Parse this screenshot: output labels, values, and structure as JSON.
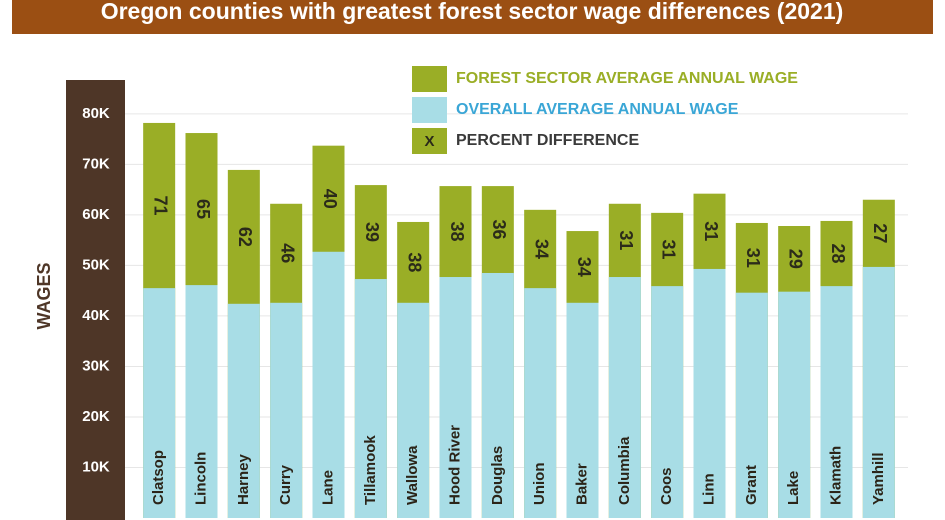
{
  "chart_data": {
    "type": "bar",
    "title": "Oregon counties with greatest forest sector wage differences (2021)",
    "y_label": "WAGES",
    "categories": [
      "Clatsop",
      "Lincoln",
      "Harney",
      "Curry",
      "Lane",
      "Tillamook",
      "Wallowa",
      "Hood River",
      "Douglas",
      "Union",
      "Baker",
      "Columbia",
      "Coos",
      "Linn",
      "Grant",
      "Lake",
      "Klamath",
      "Yamhill"
    ],
    "series": [
      {
        "name": "FOREST SECTOR AVERAGE ANNUAL WAGE",
        "color": "#9aae26",
        "values": [
          78200,
          76200,
          68900,
          62200,
          73700,
          65900,
          58600,
          65700,
          65700,
          61000,
          56800,
          62200,
          60400,
          64200,
          58400,
          57800,
          58800,
          63000
        ]
      },
      {
        "name": "OVERALL AVERAGE ANNUAL WAGE",
        "color": "#a8dde6",
        "values": [
          45500,
          46100,
          42400,
          42600,
          52700,
          47300,
          42600,
          47700,
          48500,
          45500,
          42600,
          47700,
          45900,
          49300,
          44600,
          44800,
          45900,
          49700
        ]
      },
      {
        "name": "PERCENT DIFFERENCE",
        "color": "#9aae26",
        "legend_marker": "X",
        "values": [
          71,
          65,
          62,
          46,
          40,
          39,
          38,
          38,
          36,
          34,
          34,
          31,
          31,
          31,
          31,
          29,
          28,
          27
        ]
      }
    ],
    "ylim": [
      0,
      86700
    ],
    "yticks": [
      {
        "value": 10000,
        "label": "10K"
      },
      {
        "value": 20000,
        "label": "20K"
      },
      {
        "value": 30000,
        "label": "30K"
      },
      {
        "value": 40000,
        "label": "40K"
      },
      {
        "value": 50000,
        "label": "50K"
      },
      {
        "value": 60000,
        "label": "60K"
      },
      {
        "value": 70000,
        "label": "70K"
      },
      {
        "value": 80000,
        "label": "80K"
      }
    ],
    "grid": true
  }
}
